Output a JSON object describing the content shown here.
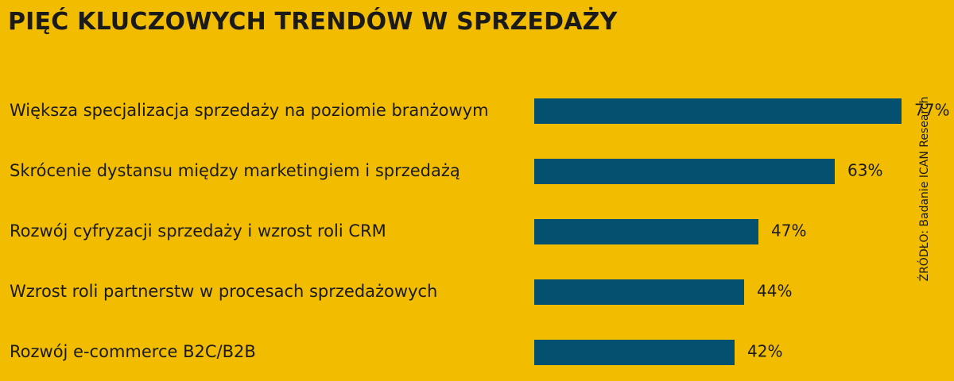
{
  "chart_data": {
    "type": "bar",
    "orientation": "horizontal",
    "title": "PIĘĆ KLUCZOWYCH TRENDÓW W SPRZEDAŻY",
    "categories": [
      "Większa specjalizacja sprzedaży na poziomie branżowym",
      "Skrócenie dystansu między marketingiem i sprzedażą",
      "Rozwój cyfryzacji sprzedaży i wzrost roli CRM",
      "Wzrost roli partnerstw w procesach sprzedażowych",
      "Rozwój e-commerce B2C/B2B"
    ],
    "values": [
      77,
      63,
      47,
      44,
      42
    ],
    "value_labels": [
      "77%",
      "63%",
      "47%",
      "44%",
      "42%"
    ],
    "unit": "%",
    "xlim": [
      0,
      100
    ],
    "grid": false,
    "source": "ŹRÓDŁO: Badanie ICAN Research",
    "colors": {
      "background": "#f2bd00",
      "bar": "#03506f",
      "text": "#1a1a1a"
    }
  }
}
